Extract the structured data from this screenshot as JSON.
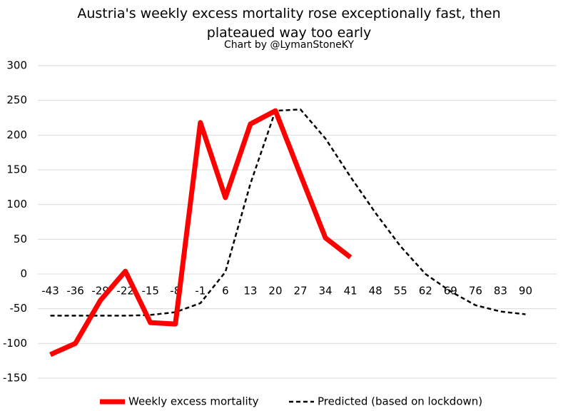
{
  "chart_data": {
    "type": "line",
    "title": "Austria's weekly excess mortality rose exceptionally fast, then plateaued way too early",
    "subtitle": "Chart by @LymanStoneKY",
    "categories": [
      "-43",
      "-36",
      "-29",
      "-22",
      "-15",
      "-8",
      "-1",
      "6",
      "13",
      "20",
      "27",
      "34",
      "41",
      "48",
      "55",
      "62",
      "69",
      "76",
      "83",
      "90"
    ],
    "series": [
      {
        "name": "Weekly excess mortality",
        "color": "#ff0000",
        "dash": false,
        "values": [
          -116,
          -100,
          -38,
          4,
          -70,
          -72,
          218,
          110,
          216,
          235,
          143,
          52,
          24,
          null,
          null,
          null,
          null,
          null,
          null,
          null
        ]
      },
      {
        "name": "Predicted (based on lockdown)",
        "color": "#000000",
        "dash": true,
        "values": [
          -60,
          -60,
          -60,
          -60,
          -59,
          -55,
          -42,
          3,
          130,
          235,
          237,
          195,
          140,
          88,
          40,
          0,
          -25,
          -45,
          -54,
          -58
        ]
      }
    ],
    "ylim": [
      -150,
      300
    ],
    "yticks": [
      -150,
      -100,
      -50,
      0,
      50,
      100,
      150,
      200,
      250,
      300
    ],
    "grid": true,
    "legend": "bottom"
  }
}
